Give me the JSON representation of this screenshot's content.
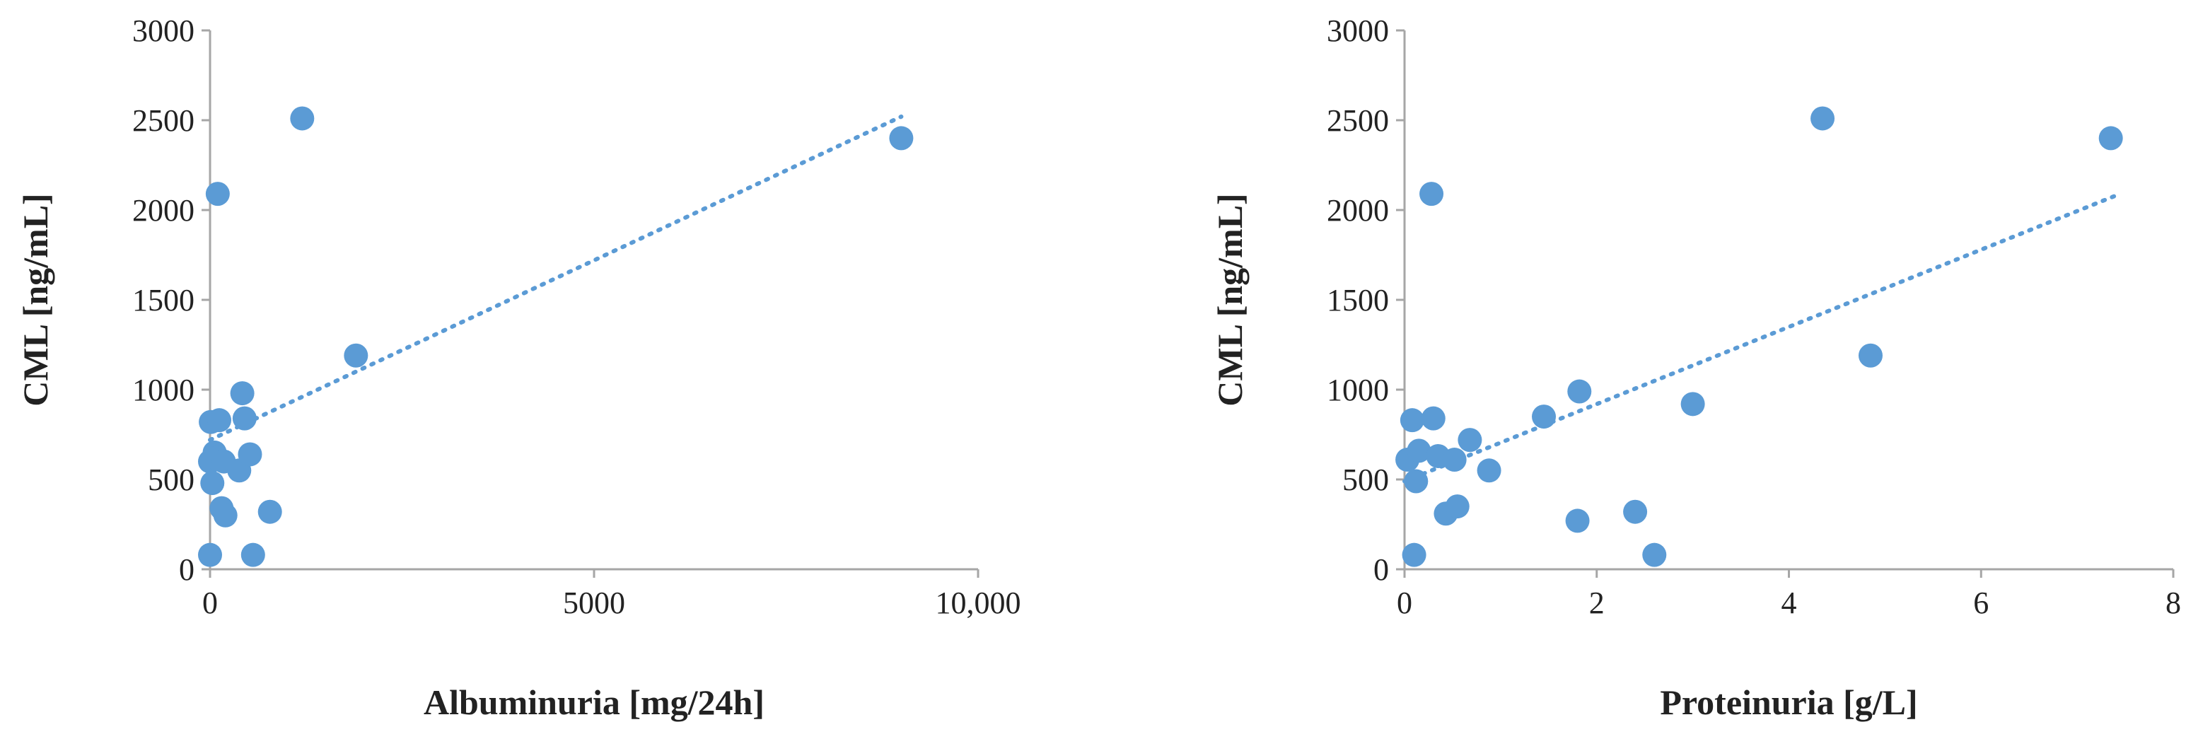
{
  "colors": {
    "marker": "#5b9bd5",
    "trendline": "#5b9bd5",
    "axis": "#a6a6a6",
    "text": "#222222"
  },
  "chart_data": [
    {
      "type": "scatter",
      "title": "",
      "xlabel": "Albuminuria [mg/24h]",
      "ylabel": "CML [ng/mL]",
      "xlim": [
        0,
        10000
      ],
      "ylim": [
        0,
        3000
      ],
      "x_ticks": [
        0,
        5000,
        10000
      ],
      "x_tick_labels": [
        "0",
        "5000",
        "10,000"
      ],
      "y_ticks": [
        0,
        500,
        1000,
        1500,
        2000,
        2500,
        3000
      ],
      "y_tick_labels": [
        "0",
        "500",
        "1000",
        "1500",
        "2000",
        "2500",
        "3000"
      ],
      "grid": false,
      "legend": "none",
      "trendline": {
        "style": "dotted",
        "x": [
          0,
          9000
        ],
        "y": [
          720,
          2520
        ]
      },
      "series": [
        {
          "points": [
            [
              0,
              80
            ],
            [
              0,
              600
            ],
            [
              10,
              820
            ],
            [
              30,
              480
            ],
            [
              60,
              650
            ],
            [
              80,
              620
            ],
            [
              100,
              2090
            ],
            [
              120,
              830
            ],
            [
              150,
              340
            ],
            [
              180,
              600
            ],
            [
              200,
              300
            ],
            [
              380,
              550
            ],
            [
              420,
              980
            ],
            [
              450,
              840
            ],
            [
              520,
              640
            ],
            [
              560,
              80
            ],
            [
              780,
              320
            ],
            [
              1200,
              2510
            ],
            [
              1900,
              1190
            ],
            [
              9000,
              2400
            ]
          ]
        }
      ]
    },
    {
      "type": "scatter",
      "title": "",
      "xlabel": "Proteinuria [g/L]",
      "ylabel": "CML [ng/mL]",
      "xlim": [
        0,
        8
      ],
      "ylim": [
        0,
        3000
      ],
      "x_ticks": [
        0,
        2,
        4,
        6,
        8
      ],
      "x_tick_labels": [
        "0",
        "2",
        "4",
        "6",
        "8"
      ],
      "y_ticks": [
        0,
        500,
        1000,
        1500,
        2000,
        2500,
        3000
      ],
      "y_tick_labels": [
        "0",
        "500",
        "1000",
        "1500",
        "2000",
        "2500",
        "3000"
      ],
      "grid": false,
      "legend": "none",
      "trendline": {
        "style": "dotted",
        "x": [
          0,
          7.4
        ],
        "y": [
          490,
          2080
        ]
      },
      "series": [
        {
          "points": [
            [
              0.03,
              610
            ],
            [
              0.08,
              830
            ],
            [
              0.1,
              80
            ],
            [
              0.12,
              490
            ],
            [
              0.15,
              660
            ],
            [
              0.28,
              2090
            ],
            [
              0.3,
              840
            ],
            [
              0.35,
              630
            ],
            [
              0.43,
              310
            ],
            [
              0.52,
              610
            ],
            [
              0.55,
              350
            ],
            [
              0.68,
              720
            ],
            [
              0.88,
              550
            ],
            [
              1.45,
              850
            ],
            [
              1.8,
              270
            ],
            [
              1.82,
              990
            ],
            [
              2.4,
              320
            ],
            [
              2.6,
              80
            ],
            [
              3.0,
              920
            ],
            [
              4.35,
              2510
            ],
            [
              4.85,
              1190
            ],
            [
              7.35,
              2400
            ]
          ]
        }
      ]
    }
  ]
}
